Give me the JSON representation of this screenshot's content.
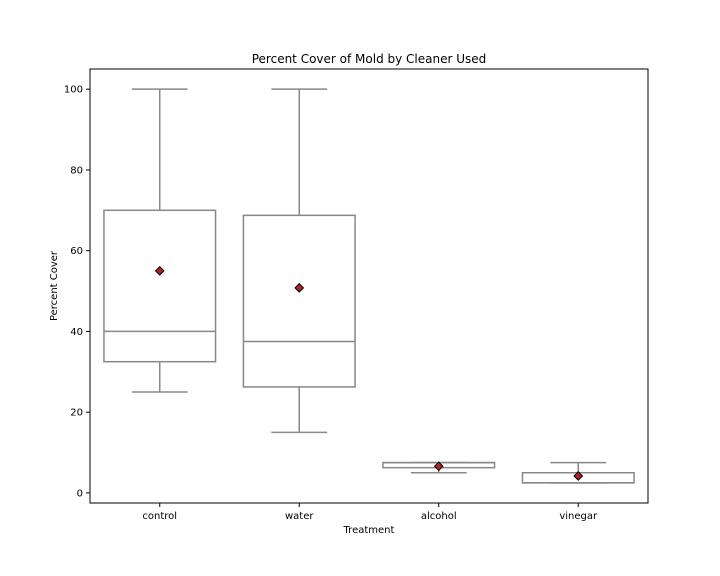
{
  "chart_data": {
    "type": "box",
    "title": "Percent Cover of Mold by Cleaner Used",
    "xlabel": "Treatment",
    "ylabel": "Percent Cover",
    "ylim": [
      -2.5,
      105
    ],
    "yticks": [
      0,
      20,
      40,
      60,
      80,
      100
    ],
    "categories": [
      "control",
      "water",
      "alcohol",
      "vinegar"
    ],
    "boxes": [
      {
        "category": "control",
        "whisker_low": 25,
        "q1": 32.5,
        "median": 40,
        "q3": 70,
        "whisker_high": 100,
        "mean": 55
      },
      {
        "category": "water",
        "whisker_low": 15,
        "q1": 26.25,
        "median": 37.5,
        "q3": 68.75,
        "whisker_high": 100,
        "mean": 50.8
      },
      {
        "category": "alcohol",
        "whisker_low": 5,
        "q1": 6.25,
        "median": 7.5,
        "q3": 7.5,
        "whisker_high": 7.5,
        "mean": 6.6
      },
      {
        "category": "vinegar",
        "whisker_low": 2.5,
        "q1": 2.5,
        "median": 2.5,
        "q3": 5,
        "whisker_high": 7.5,
        "mean": 4.2
      }
    ],
    "grid": false,
    "legend": "none",
    "colors": {
      "box_edge": "#888888",
      "mean_marker": "#b22222",
      "marker_edge": "#000000"
    }
  }
}
